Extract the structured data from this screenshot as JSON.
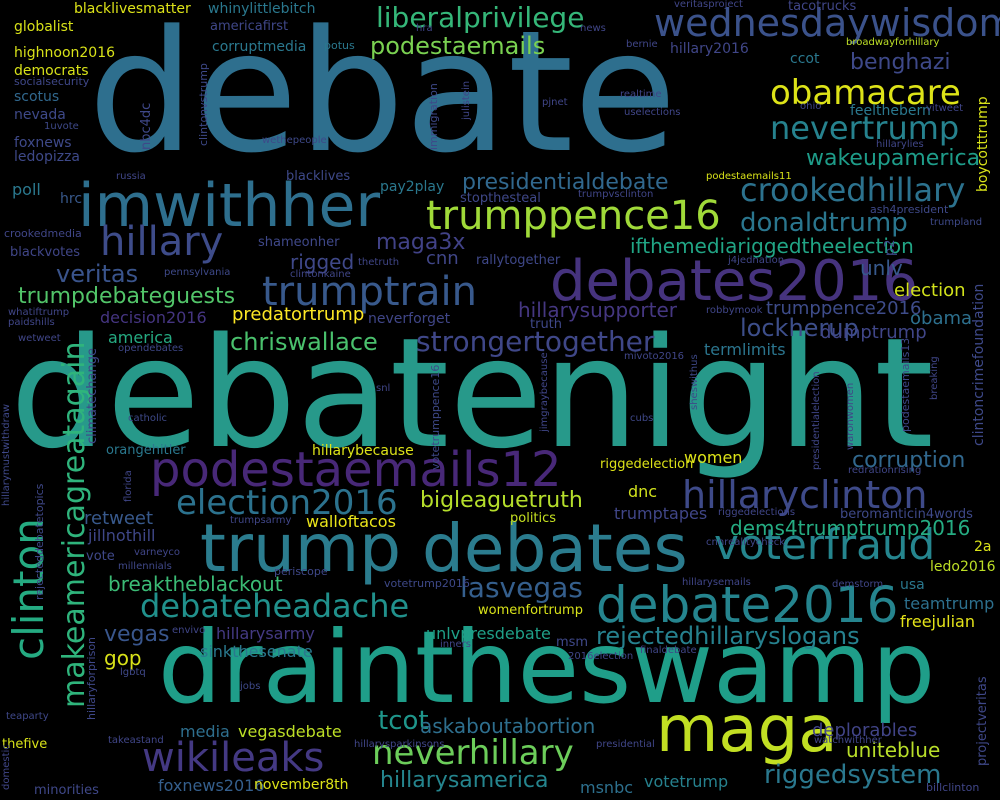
{
  "words": [
    {
      "text": "debate",
      "color": "#2e6f8e"
    },
    {
      "text": "debatenight",
      "color": "#27998a"
    },
    {
      "text": "draintheswamp",
      "color": "#1f9e89"
    },
    {
      "text": "trump debates",
      "color": "#2b7c8e"
    },
    {
      "text": "imwithher",
      "color": "#2e6f8e"
    },
    {
      "text": "debates2016",
      "color": "#46337e"
    },
    {
      "text": "podestaemails12",
      "color": "#482878"
    },
    {
      "text": "maga",
      "color": "#c2df23"
    },
    {
      "text": "debate2016",
      "color": "#25848e"
    },
    {
      "text": "trumppence16",
      "color": "#a0da39"
    },
    {
      "text": "wednesdaywisdom",
      "color": "#3b528b"
    },
    {
      "text": "trumptrain",
      "color": "#38598c"
    },
    {
      "text": "hillary",
      "color": "#3e4c8a"
    },
    {
      "text": "hillaryclinton",
      "color": "#3e4a89"
    },
    {
      "text": "voterfraud",
      "color": "#25858e"
    },
    {
      "text": "wikileaks",
      "color": "#443983"
    },
    {
      "text": "neverhillary",
      "color": "#6ccd5a"
    },
    {
      "text": "debateheadache",
      "color": "#21918c"
    },
    {
      "text": "clinton",
      "color": "#25ab82"
    },
    {
      "text": "election2016",
      "color": "#2c728e"
    },
    {
      "text": "crookedhillary",
      "color": "#2c728e"
    },
    {
      "text": "nevertrump",
      "color": "#26828e"
    },
    {
      "text": "obamacare",
      "color": "#dde318"
    },
    {
      "text": "makeamericagreatagain",
      "color": "#2fb47c"
    },
    {
      "text": "liberalprivilege",
      "color": "#35b779"
    },
    {
      "text": "podestaemails",
      "color": "#7ad151"
    },
    {
      "text": "strongertogether",
      "color": "#3f4788"
    },
    {
      "text": "corruption",
      "color": "#31688e"
    },
    {
      "text": "veritas",
      "color": "#3a548c"
    },
    {
      "text": "chriswallace",
      "color": "#4ac16d"
    },
    {
      "text": "trumpdebateguests",
      "color": "#52c569"
    },
    {
      "text": "donaldtrump",
      "color": "#2a768e"
    },
    {
      "text": "presidentialdebate",
      "color": "#31688e"
    },
    {
      "text": "lasvegas",
      "color": "#355f8d"
    },
    {
      "text": "riggedsystem",
      "color": "#2a788e"
    },
    {
      "text": "rejectedhillaryslogans",
      "color": "#26818e"
    },
    {
      "text": "bigleaguetruth",
      "color": "#b5de2b"
    },
    {
      "text": "hillarysamerica",
      "color": "#25858e"
    },
    {
      "text": "wakeupamerica",
      "color": "#1e9c89"
    },
    {
      "text": "benghazi",
      "color": "#3e4989"
    },
    {
      "text": "lockherup",
      "color": "#3d4e8a"
    },
    {
      "text": "maga3x",
      "color": "#414287"
    },
    {
      "text": "ifthemediariggedtheelection",
      "color": "#21a585"
    },
    {
      "text": "breaktheblackout",
      "color": "#3bbb75"
    },
    {
      "text": "dems4trumptrump2016",
      "color": "#25ac82"
    },
    {
      "text": "uniteblue",
      "color": "#b8de29"
    },
    {
      "text": "tcot",
      "color": "#1f968b"
    },
    {
      "text": "askaboutabortion",
      "color": "#2e6f8e"
    },
    {
      "text": "vegas",
      "color": "#39568c"
    },
    {
      "text": "gop",
      "color": "#d8e219"
    },
    {
      "text": "rigged",
      "color": "#3f4889"
    },
    {
      "text": "unlv",
      "color": "#37598c"
    },
    {
      "text": "election",
      "color": "#d2e21b"
    },
    {
      "text": "obama",
      "color": "#2d708e"
    },
    {
      "text": "hillarysupporter",
      "color": "#453781"
    },
    {
      "text": "predatortrump",
      "color": "#fde725"
    },
    {
      "text": "dumptrump",
      "color": "#404688"
    },
    {
      "text": "trumppence2016",
      "color": "#3e4c8a"
    },
    {
      "text": "retweet",
      "color": "#38598c"
    },
    {
      "text": "america",
      "color": "#25ab82"
    },
    {
      "text": "cnn",
      "color": "#404688"
    },
    {
      "text": "women",
      "color": "#dde318"
    },
    {
      "text": "dnc",
      "color": "#d0e11c"
    },
    {
      "text": "trumptapes",
      "color": "#404688"
    },
    {
      "text": "teamtrump",
      "color": "#2d708e"
    },
    {
      "text": "freejulian",
      "color": "#e5e419"
    },
    {
      "text": "deplorables",
      "color": "#414487"
    },
    {
      "text": "foxnews2016",
      "color": "#355f8d"
    },
    {
      "text": "november8th",
      "color": "#dde318"
    },
    {
      "text": "msnbc",
      "color": "#2d708e"
    },
    {
      "text": "votetrump",
      "color": "#26818e"
    },
    {
      "text": "sinkthesenate",
      "color": "#2a788e"
    },
    {
      "text": "hillarysarmy",
      "color": "#443a83"
    },
    {
      "text": "unlvpresdebate",
      "color": "#1fa088"
    },
    {
      "text": "walloftacos",
      "color": "#eae51a"
    },
    {
      "text": "jillnothill",
      "color": "#3f4788"
    },
    {
      "text": "vegasdebate",
      "color": "#bddf26"
    },
    {
      "text": "media",
      "color": "#2e6f8e"
    },
    {
      "text": "termlimits",
      "color": "#2b758e"
    },
    {
      "text": "decision2016",
      "color": "#453581"
    },
    {
      "text": "politics",
      "color": "#c5e021"
    },
    {
      "text": "globalist",
      "color": "#d8e219"
    },
    {
      "text": "highnoon2016",
      "color": "#d8e219"
    },
    {
      "text": "democrats",
      "color": "#d8e219"
    },
    {
      "text": "socialsecurity",
      "color": "#3f4889"
    },
    {
      "text": "scotus",
      "color": "#31688e"
    },
    {
      "text": "nevada",
      "color": "#3e4989"
    },
    {
      "text": "1uvote",
      "color": "#3e4989"
    },
    {
      "text": "foxnews",
      "color": "#3e4989"
    },
    {
      "text": "ledopizza",
      "color": "#3e4989"
    },
    {
      "text": "poll",
      "color": "#2a788e"
    },
    {
      "text": "hrc",
      "color": "#38598c"
    },
    {
      "text": "crookedmedia",
      "color": "#404688"
    },
    {
      "text": "blackvotes",
      "color": "#404688"
    },
    {
      "text": "whatiftrump",
      "color": "#404688"
    },
    {
      "text": "paidshills",
      "color": "#404688"
    },
    {
      "text": "wetweet",
      "color": "#404688"
    },
    {
      "text": "blacklivesmatter",
      "color": "#dde318"
    },
    {
      "text": "whinylittlebitch",
      "color": "#2a788e"
    },
    {
      "text": "americafirst",
      "color": "#3f4788"
    },
    {
      "text": "corruptmedia",
      "color": "#2a788e"
    },
    {
      "text": "potus",
      "color": "#2a788e"
    },
    {
      "text": "hra",
      "color": "#404688"
    },
    {
      "text": "news",
      "color": "#404688"
    },
    {
      "text": "veritasproject",
      "color": "#404688"
    },
    {
      "text": "tacotrucks",
      "color": "#404688"
    },
    {
      "text": "bernie",
      "color": "#404688"
    },
    {
      "text": "hillary2016",
      "color": "#404688"
    },
    {
      "text": "broadwayforhillary",
      "color": "#bddf26"
    },
    {
      "text": "ccot",
      "color": "#2a788e"
    },
    {
      "text": "nbc4dc",
      "color": "#3f4889"
    },
    {
      "text": "clintonvstrump",
      "color": "#3e4989"
    },
    {
      "text": "pjnet",
      "color": "#404688"
    },
    {
      "text": "realtime",
      "color": "#404688"
    },
    {
      "text": "uselections",
      "color": "#404688"
    },
    {
      "text": "immigration",
      "color": "#3e4989"
    },
    {
      "text": "julistein",
      "color": "#404688"
    },
    {
      "text": "wethepeople",
      "color": "#3e4989"
    },
    {
      "text": "ohio",
      "color": "#404688"
    },
    {
      "text": "feelthebern",
      "color": "#2a788e"
    },
    {
      "text": "vitweet",
      "color": "#404688"
    },
    {
      "text": "hillarylies",
      "color": "#404688"
    },
    {
      "text": "boycotttrump",
      "color": "#d8e219"
    },
    {
      "text": "russia",
      "color": "#404688"
    },
    {
      "text": "blacklives",
      "color": "#3e4989"
    },
    {
      "text": "pay2play",
      "color": "#2a788e"
    },
    {
      "text": "stopthesteal",
      "color": "#3f4889"
    },
    {
      "text": "trumpvsclinton",
      "color": "#404688"
    },
    {
      "text": "podestaemails11",
      "color": "#d8e219"
    },
    {
      "text": "ash4president",
      "color": "#3e4989"
    },
    {
      "text": "trumpland",
      "color": "#3e4989"
    },
    {
      "text": "shameonher",
      "color": "#3f4889"
    },
    {
      "text": "pennsylvania",
      "color": "#3e4989"
    },
    {
      "text": "clintonkaine",
      "color": "#404688"
    },
    {
      "text": "thetruth",
      "color": "#404688"
    },
    {
      "text": "rallytogether",
      "color": "#3f4889"
    },
    {
      "text": "j4jednation",
      "color": "#404688"
    },
    {
      "text": "p2",
      "color": "#3e4989"
    },
    {
      "text": "truth",
      "color": "#3f4889"
    },
    {
      "text": "neverforget",
      "color": "#404688"
    },
    {
      "text": "robbymook",
      "color": "#404688"
    },
    {
      "text": "opendebates",
      "color": "#3f4889"
    },
    {
      "text": "climatechange",
      "color": "#3f4889"
    },
    {
      "text": "votetrumppence16",
      "color": "#3e4989"
    },
    {
      "text": "jimgraybecause",
      "color": "#404688"
    },
    {
      "text": "mivoto2016",
      "color": "#404688"
    },
    {
      "text": "sheswithus",
      "color": "#3e4989"
    },
    {
      "text": "podestaemails13",
      "color": "#3f4889"
    },
    {
      "text": "presidentialelection",
      "color": "#404688"
    },
    {
      "text": "breaking",
      "color": "#404688"
    },
    {
      "text": "clintoncrimefoundation",
      "color": "#3e4989"
    },
    {
      "text": "catholic",
      "color": "#3e4989"
    },
    {
      "text": "snl",
      "color": "#404688"
    },
    {
      "text": "cubs",
      "color": "#3f4889"
    },
    {
      "text": "orangehitler",
      "color": "#2a788e"
    },
    {
      "text": "hillarybecause",
      "color": "#dde318"
    },
    {
      "text": "riggedelection",
      "color": "#dde318"
    },
    {
      "text": "waronwomen",
      "color": "#404688"
    },
    {
      "text": "redrationrising",
      "color": "#404688"
    },
    {
      "text": "hillarymustwithdraw",
      "color": "#3f4889"
    },
    {
      "text": "rejecteddebatetopics",
      "color": "#3f4889"
    },
    {
      "text": "florida",
      "color": "#404688"
    },
    {
      "text": "riggedelections",
      "color": "#404688"
    },
    {
      "text": "beromanticin4words",
      "color": "#3e4989"
    },
    {
      "text": "trumpsarmy",
      "color": "#404688"
    },
    {
      "text": "varneyco",
      "color": "#404688"
    },
    {
      "text": "vote",
      "color": "#3f4889"
    },
    {
      "text": "millennials",
      "color": "#3f4889"
    },
    {
      "text": "cnnrealitycheck",
      "color": "#404688"
    },
    {
      "text": "2a",
      "color": "#d8e219"
    },
    {
      "text": "ledo2016",
      "color": "#bddf26"
    },
    {
      "text": "usa",
      "color": "#2a788e"
    },
    {
      "text": "hillarysemails",
      "color": "#404688"
    },
    {
      "text": "demstorm",
      "color": "#404688"
    },
    {
      "text": "periscope",
      "color": "#3f4889"
    },
    {
      "text": "votetrump2016",
      "color": "#3e4989"
    },
    {
      "text": "womenfortrump",
      "color": "#d8e219"
    },
    {
      "text": "envivo",
      "color": "#404688"
    },
    {
      "text": "msm",
      "color": "#3f4889"
    },
    {
      "text": "inners",
      "color": "#404688"
    },
    {
      "text": "2016election",
      "color": "#404688"
    },
    {
      "text": "finaldebate",
      "color": "#404688"
    },
    {
      "text": "lgbtq",
      "color": "#3f4889"
    },
    {
      "text": "hillaryforprison",
      "color": "#3f4889"
    },
    {
      "text": "jobs",
      "color": "#3e4989"
    },
    {
      "text": "projectveritas",
      "color": "#3f4889"
    },
    {
      "text": "teaparty",
      "color": "#3f4889"
    },
    {
      "text": "takeastand",
      "color": "#404688"
    },
    {
      "text": "hillarysparkinsons",
      "color": "#404688"
    },
    {
      "text": "presidential",
      "color": "#404688"
    },
    {
      "text": "watchwithher",
      "color": "#404688"
    },
    {
      "text": "thefive",
      "color": "#d8e219"
    },
    {
      "text": "minorities",
      "color": "#3f4889"
    },
    {
      "text": "billclinton",
      "color": "#404688"
    },
    {
      "text": "domestic",
      "color": "#404688"
    }
  ]
}
